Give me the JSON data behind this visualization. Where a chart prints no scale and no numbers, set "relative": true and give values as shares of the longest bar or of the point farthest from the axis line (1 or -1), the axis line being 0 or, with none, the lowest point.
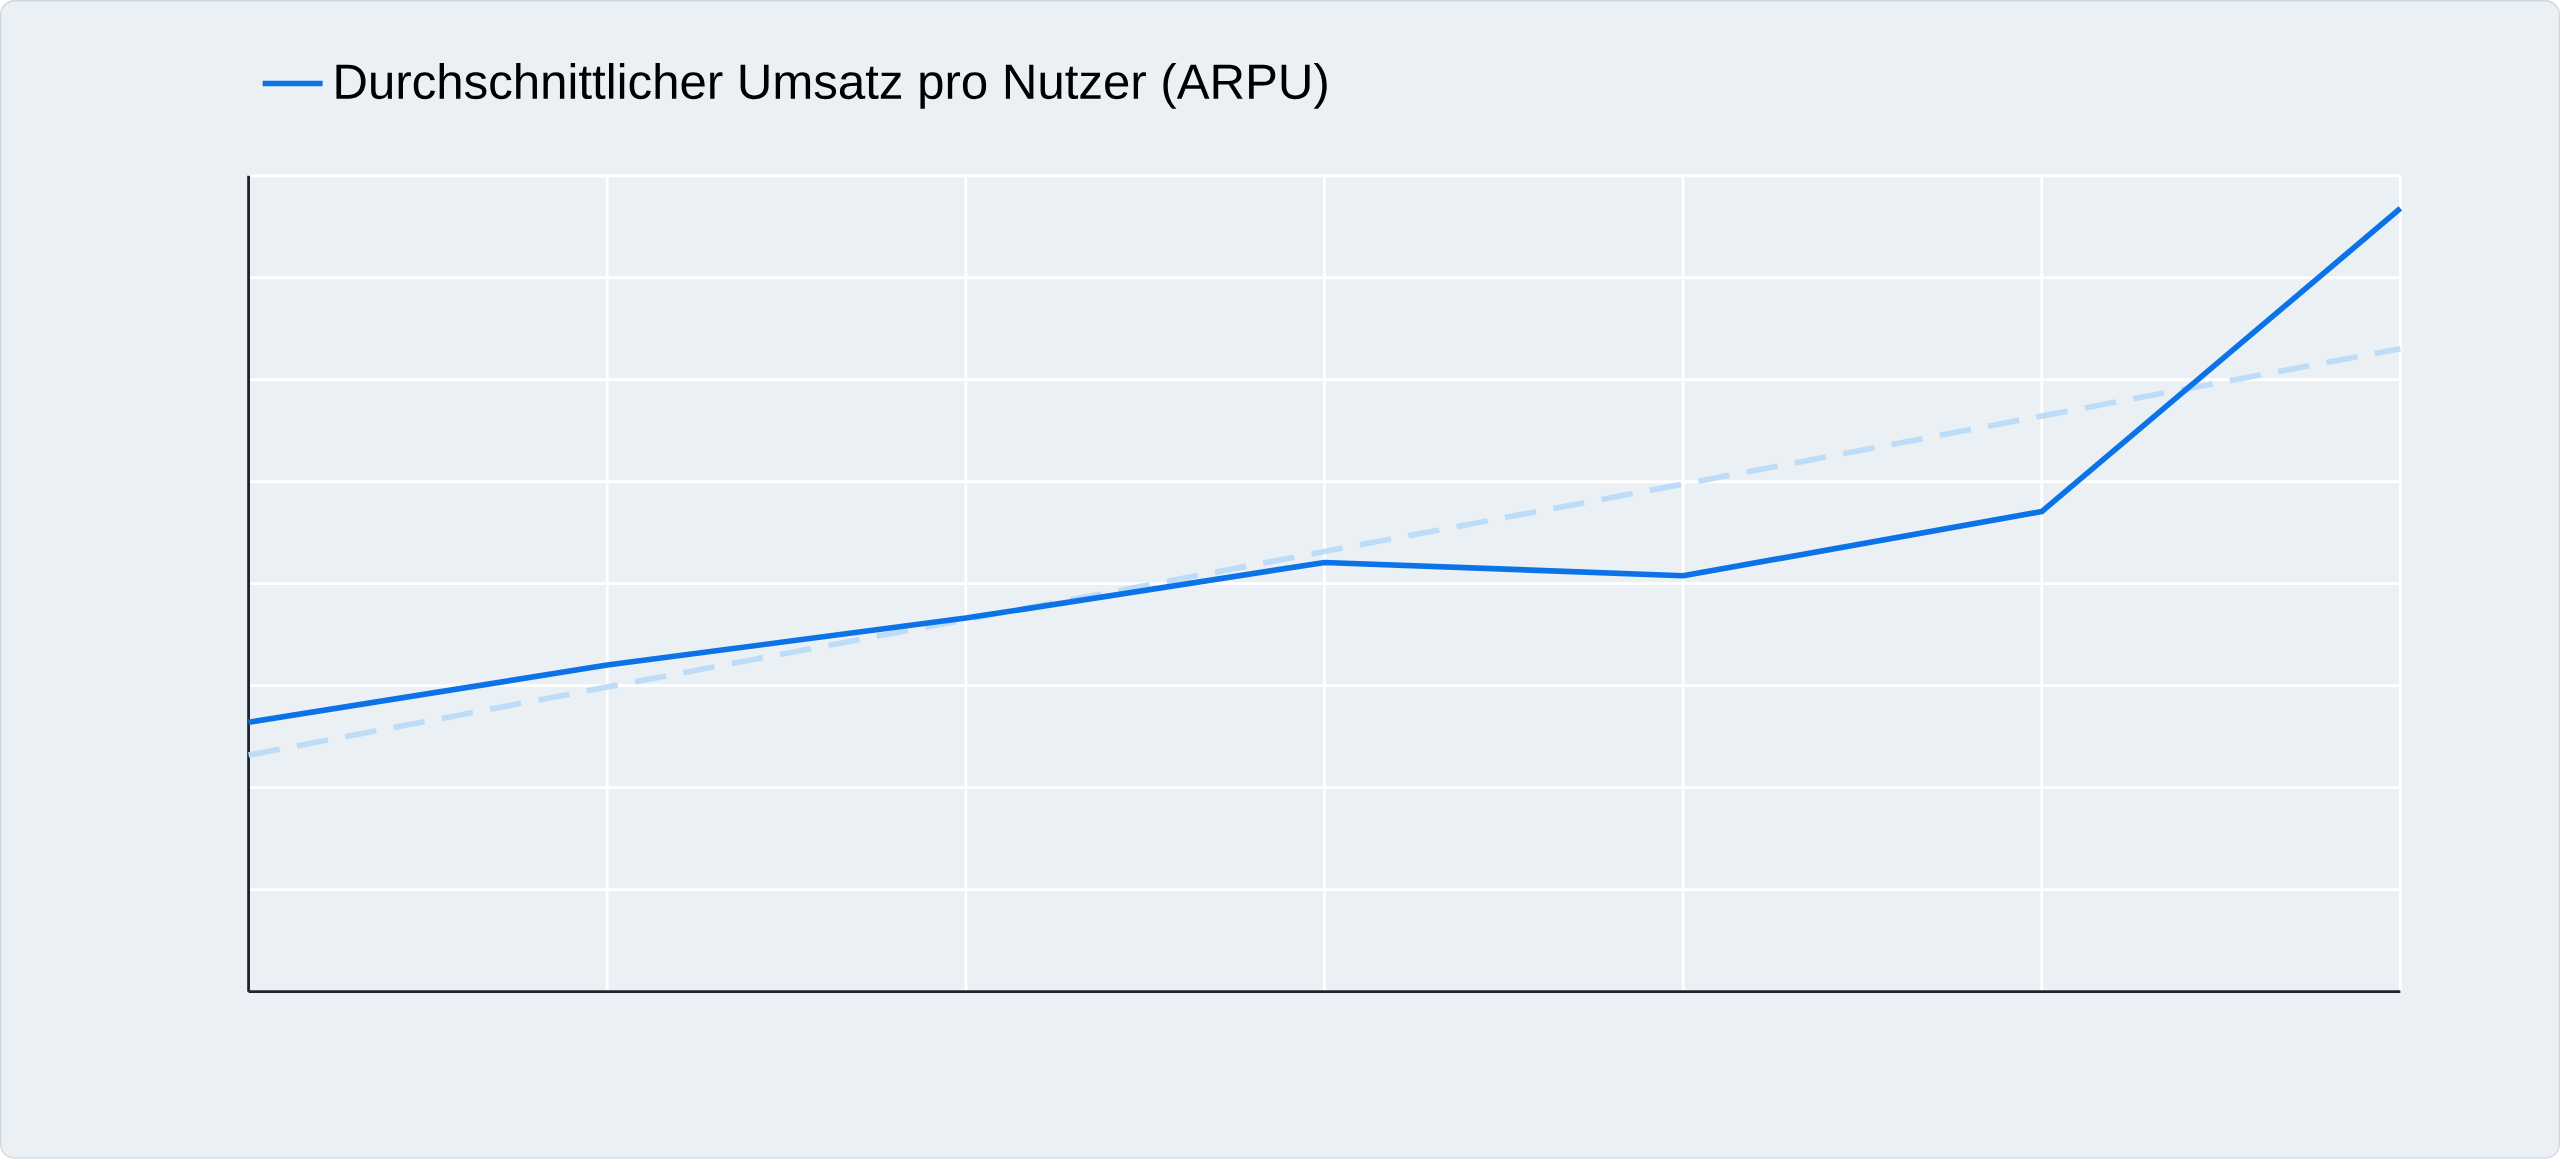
{
  "chart_data": {
    "type": "line",
    "relative": true,
    "grid": true,
    "legend": "top left",
    "categories": [
      null,
      null,
      null,
      null,
      null,
      null,
      null
    ],
    "series": [
      {
        "name": "Durchschnittlicher Umsatz pro Nutzer (ARPU)",
        "color": "#0b72e7",
        "values": [
          0.344,
          0.417,
          0.477,
          0.548,
          0.531,
          0.613,
          1.0
        ]
      },
      {
        "type": "line",
        "color": "#bcdcf7",
        "line_style": "dashed",
        "values": [
          0.302,
          0.389,
          0.475,
          0.562,
          0.648,
          0.735,
          0.821
        ]
      }
    ]
  }
}
